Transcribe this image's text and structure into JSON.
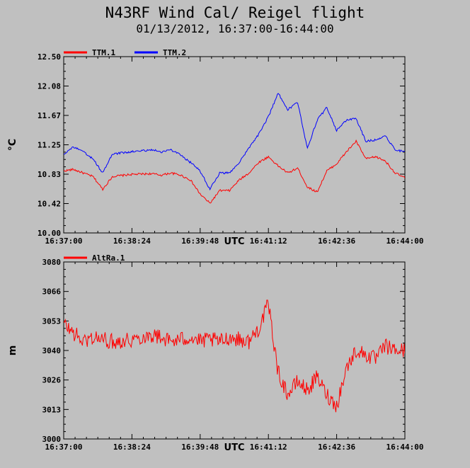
{
  "title": "N43RF Wind Cal/ Reigel flight",
  "subtitle": "01/13/2012, 16:37:00-16:44:00",
  "x_unit": "UTC",
  "x_ticks": [
    "16:37:00",
    "16:38:24",
    "16:39:48",
    "16:41:12",
    "16:42:36",
    "16:44:00"
  ],
  "chart_data": [
    {
      "type": "line",
      "ylabel": "°C",
      "ylim": [
        10.0,
        12.5
      ],
      "yticks": [
        "10.00",
        "10.42",
        "10.83",
        "11.25",
        "11.67",
        "12.08",
        "12.50"
      ],
      "grid": false,
      "legend": "top-left",
      "x_range": [
        "16:37:00",
        "16:44:00"
      ],
      "series": [
        {
          "name": "TTM.1",
          "color": "#ff0000",
          "x": [
            "16:37:00",
            "16:37:12",
            "16:37:24",
            "16:37:36",
            "16:37:48",
            "16:38:00",
            "16:38:24",
            "16:38:48",
            "16:39:00",
            "16:39:12",
            "16:39:24",
            "16:39:36",
            "16:39:48",
            "16:40:00",
            "16:40:12",
            "16:40:24",
            "16:40:36",
            "16:40:48",
            "16:41:00",
            "16:41:12",
            "16:41:24",
            "16:41:36",
            "16:41:48",
            "16:42:00",
            "16:42:12",
            "16:42:24",
            "16:42:36",
            "16:42:48",
            "16:43:00",
            "16:43:12",
            "16:43:24",
            "16:43:36",
            "16:43:48",
            "16:44:00"
          ],
          "values": [
            10.88,
            10.9,
            10.85,
            10.8,
            10.62,
            10.8,
            10.83,
            10.84,
            10.82,
            10.85,
            10.82,
            10.75,
            10.55,
            10.42,
            10.6,
            10.6,
            10.75,
            10.85,
            11.0,
            11.08,
            10.95,
            10.85,
            10.92,
            10.65,
            10.58,
            10.88,
            10.98,
            11.15,
            11.3,
            11.05,
            11.08,
            11.02,
            10.85,
            10.78
          ]
        },
        {
          "name": "TTM.2",
          "color": "#0000ff",
          "x": [
            "16:37:00",
            "16:37:12",
            "16:37:24",
            "16:37:36",
            "16:37:48",
            "16:38:00",
            "16:38:24",
            "16:38:48",
            "16:39:00",
            "16:39:12",
            "16:39:24",
            "16:39:36",
            "16:39:48",
            "16:40:00",
            "16:40:12",
            "16:40:24",
            "16:40:36",
            "16:40:48",
            "16:41:00",
            "16:41:12",
            "16:41:24",
            "16:41:36",
            "16:41:48",
            "16:42:00",
            "16:42:12",
            "16:42:24",
            "16:42:36",
            "16:42:48",
            "16:43:00",
            "16:43:12",
            "16:43:24",
            "16:43:36",
            "16:43:48",
            "16:44:00"
          ],
          "values": [
            11.12,
            11.22,
            11.15,
            11.05,
            10.85,
            11.12,
            11.15,
            11.18,
            11.15,
            11.18,
            11.1,
            11.0,
            10.88,
            10.62,
            10.85,
            10.85,
            11.0,
            11.2,
            11.4,
            11.65,
            11.98,
            11.75,
            11.85,
            11.2,
            11.6,
            11.78,
            11.45,
            11.6,
            11.62,
            11.3,
            11.32,
            11.38,
            11.18,
            11.15
          ]
        }
      ]
    },
    {
      "type": "line",
      "ylabel": "m",
      "ylim": [
        3000,
        3080
      ],
      "yticks": [
        "3000",
        "3013",
        "3026",
        "3040",
        "3053",
        "3066",
        "3080"
      ],
      "grid": false,
      "legend": "top-left",
      "x_range": [
        "16:37:00",
        "16:44:00"
      ],
      "series": [
        {
          "name": "AltRa.1",
          "color": "#ff0000",
          "x": [
            "16:37:00",
            "16:37:12",
            "16:37:24",
            "16:37:36",
            "16:37:48",
            "16:38:00",
            "16:38:24",
            "16:38:48",
            "16:39:00",
            "16:39:12",
            "16:39:24",
            "16:39:36",
            "16:39:48",
            "16:40:00",
            "16:40:12",
            "16:40:24",
            "16:40:36",
            "16:40:48",
            "16:41:00",
            "16:41:12",
            "16:41:24",
            "16:41:36",
            "16:41:48",
            "16:42:00",
            "16:42:12",
            "16:42:24",
            "16:42:36",
            "16:42:48",
            "16:43:00",
            "16:43:12",
            "16:43:24",
            "16:43:36",
            "16:43:48",
            "16:44:00"
          ],
          "values": [
            3052,
            3048,
            3044,
            3046,
            3045,
            3044,
            3045,
            3047,
            3046,
            3044,
            3045,
            3046,
            3044,
            3045,
            3044,
            3046,
            3045,
            3044,
            3050,
            3061,
            3030,
            3020,
            3026,
            3022,
            3028,
            3020,
            3015,
            3032,
            3040,
            3038,
            3036,
            3042,
            3040,
            3040
          ]
        }
      ]
    }
  ]
}
